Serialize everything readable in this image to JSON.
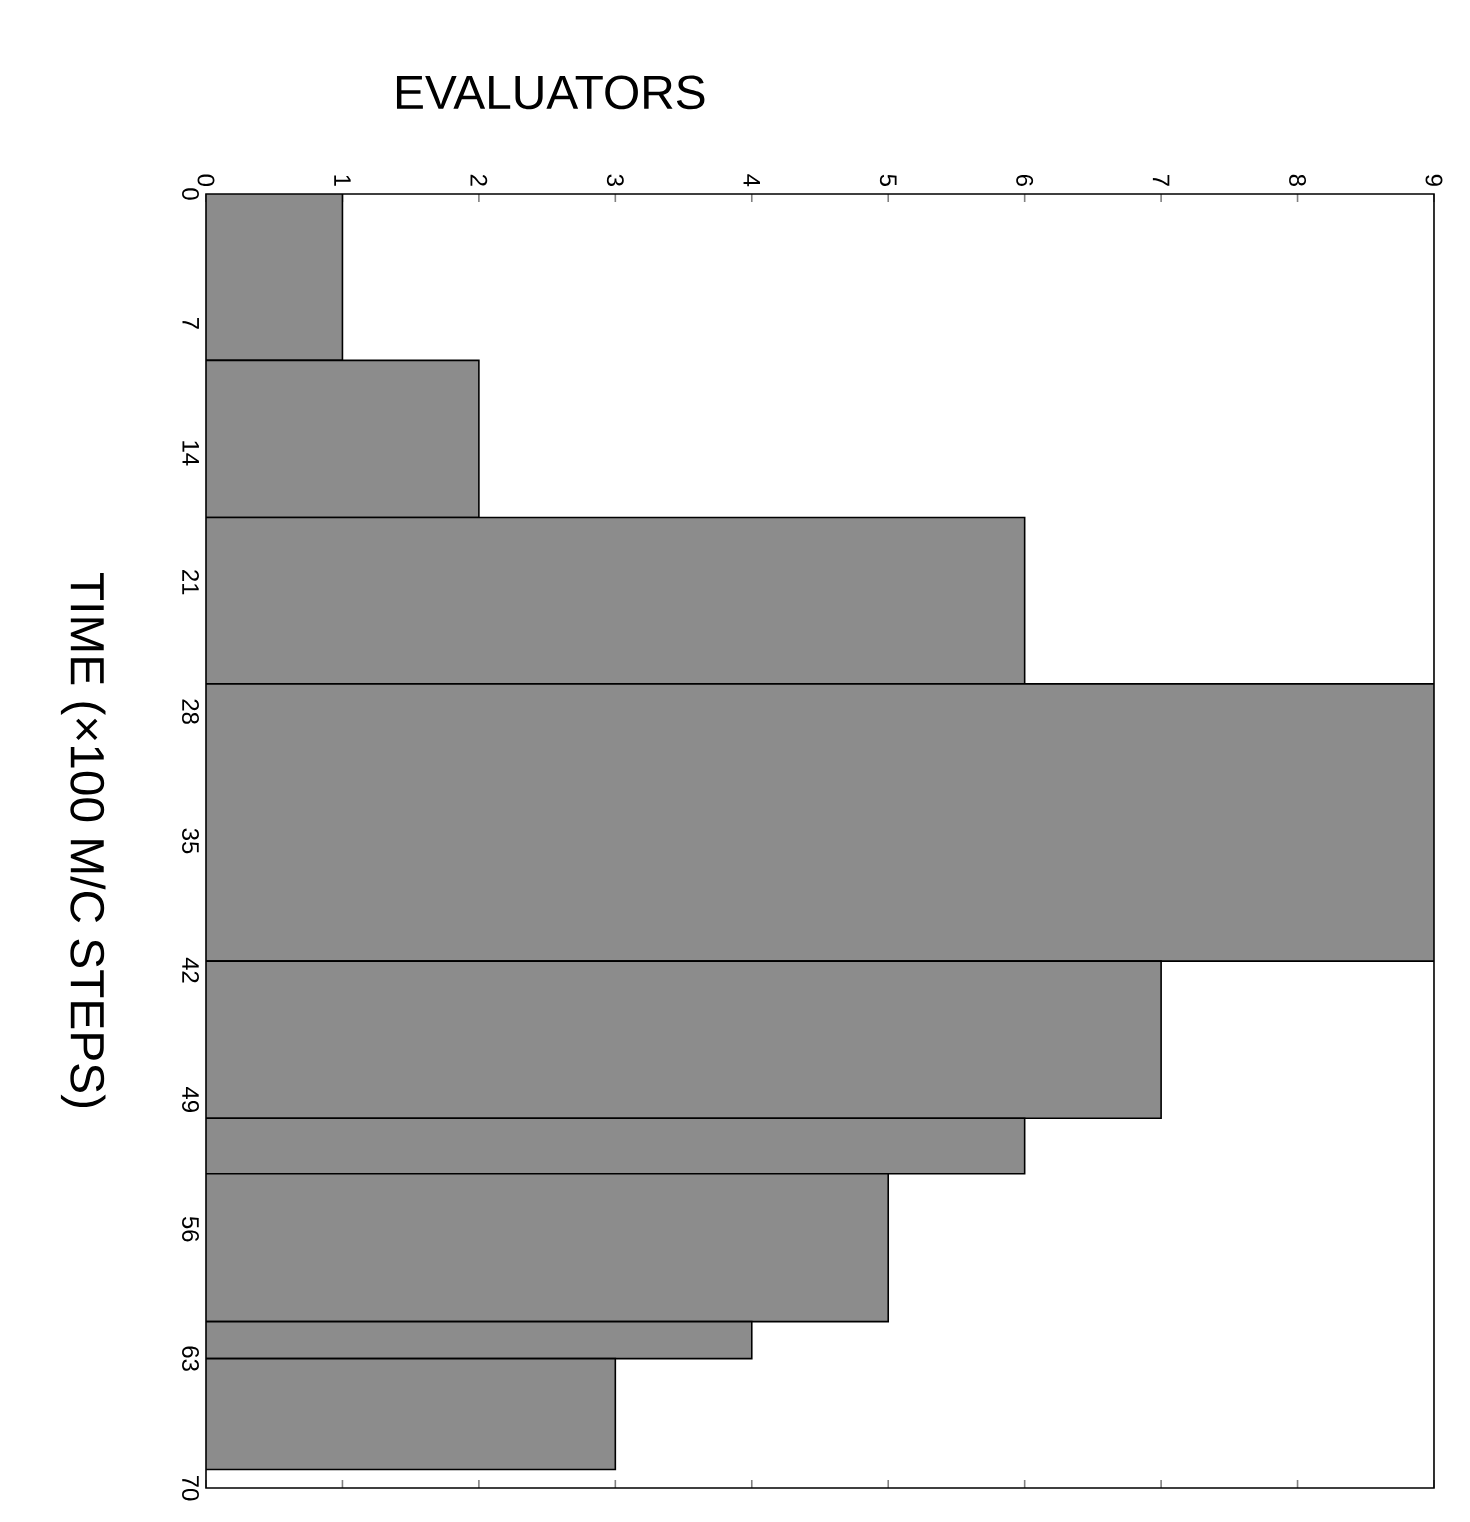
{
  "chart_data": {
    "type": "histogram",
    "orientation": "horizontal",
    "xlabel": "EVALUATORS",
    "ylabel": "TIME (×100 M/C STEPS)",
    "bins": [
      0,
      9,
      17.5,
      26.5,
      41.5,
      50,
      53,
      61,
      63,
      69
    ],
    "values": [
      1,
      2,
      6,
      9,
      7,
      6,
      5,
      4,
      3
    ],
    "color": "#8c8c8c",
    "xlim": [
      0,
      9
    ],
    "xticks": [
      0,
      1,
      2,
      3,
      4,
      5,
      6,
      7,
      8,
      9
    ],
    "ylim": [
      70,
      0
    ],
    "yticks": [
      0,
      7,
      14,
      21,
      28,
      35,
      42,
      49,
      56,
      63,
      70
    ]
  }
}
